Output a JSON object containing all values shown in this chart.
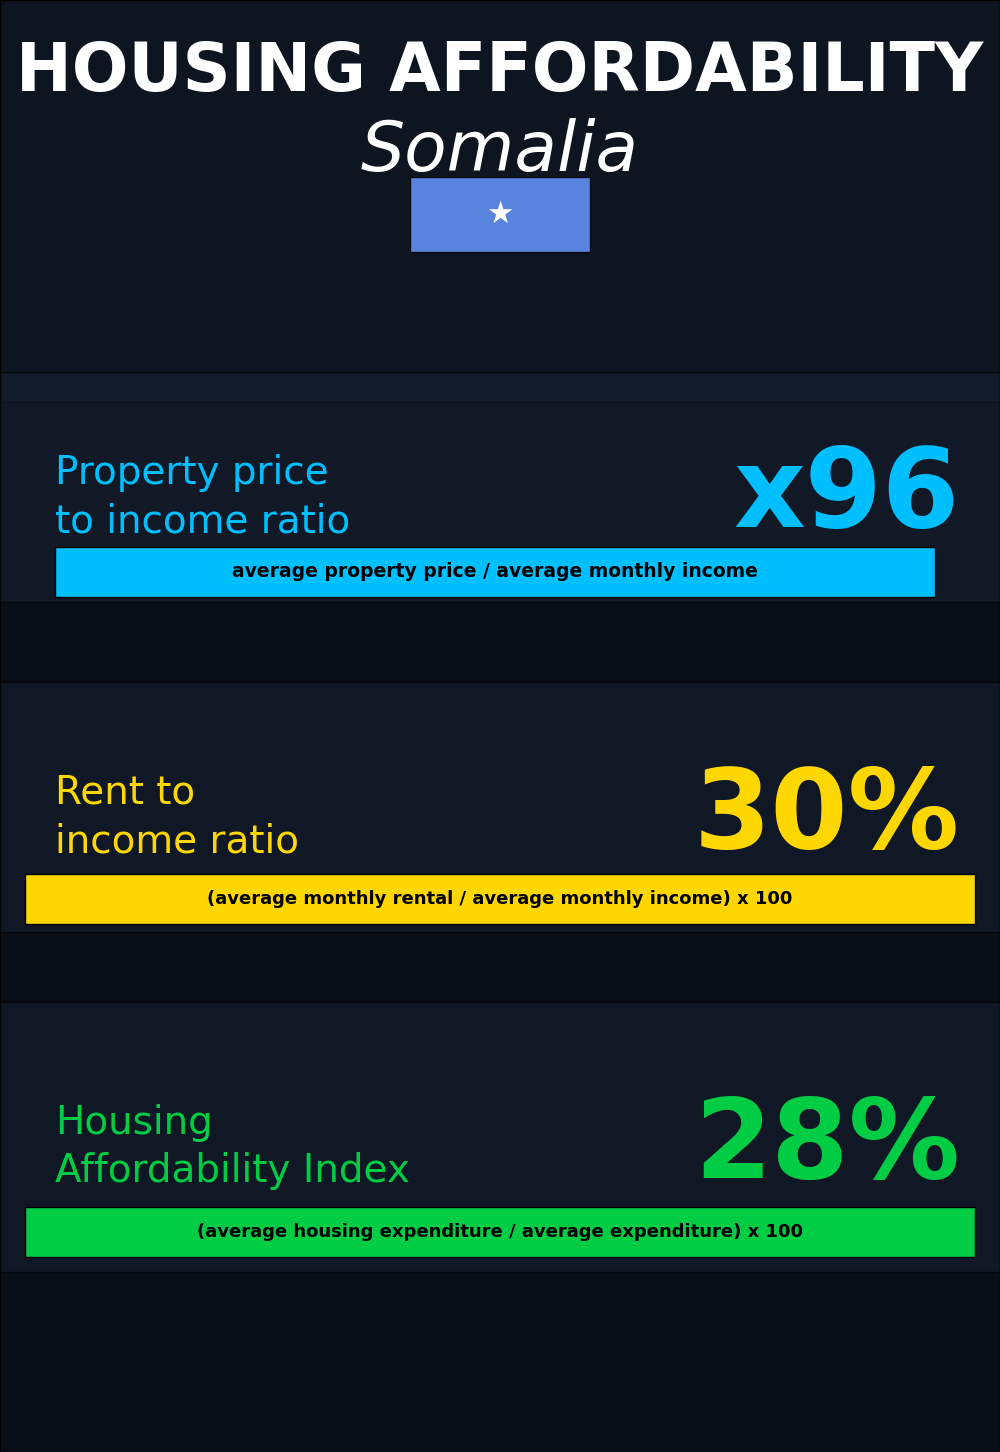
{
  "title_line1": "HOUSING AFFORDABILITY",
  "title_line2": "Somalia",
  "bg_color": "#0d1117",
  "section1_label": "Property price\nto income ratio",
  "section1_value": "x96",
  "section1_label_color": "#00bfff",
  "section1_value_color": "#00bfff",
  "section1_formula": "average property price / average monthly income",
  "section1_formula_bg": "#00bfff",
  "section2_label": "Rent to\nincome ratio",
  "section2_value": "30%",
  "section2_label_color": "#ffd700",
  "section2_value_color": "#ffd700",
  "section2_formula": "(average monthly rental / average monthly income) x 100",
  "section2_formula_bg": "#ffd700",
  "section3_label": "Housing\nAffordability Index",
  "section3_value": "28%",
  "section3_label_color": "#00cc44",
  "section3_value_color": "#00cc44",
  "section3_formula": "(average housing expenditure / average expenditure) x 100",
  "section3_formula_bg": "#00cc44",
  "flag_bg": "#6699ff",
  "flag_star_color": "#ffffff",
  "panel_color": "#1a2035",
  "title_color": "#ffffff"
}
